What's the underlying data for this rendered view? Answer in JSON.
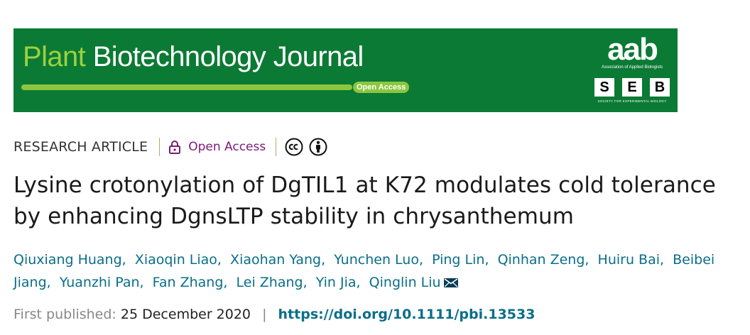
{
  "banner": {
    "title_part1": "Plant",
    "title_part2": "Biotechnology Journal",
    "open_access_badge": "Open Access",
    "color": "#0b7a34",
    "aab_logo": "aab",
    "aab_caption": "Association of Applied Biologists",
    "seb_letters": [
      "S",
      "E",
      "B"
    ],
    "seb_caption": "SOCIETY FOR EXPERIMENTAL BIOLOGY"
  },
  "meta": {
    "article_type": "RESEARCH ARTICLE",
    "lock_icon": "lock-icon",
    "open_access": "Open Access",
    "cc_icon": "creative-commons-icon",
    "by_icon": "attribution-icon"
  },
  "article": {
    "title": "Lysine crotonylation of DgTIL1 at K72 modulates cold tolerance by enhancing DgnsLTP stability in chrysanthemum"
  },
  "authors": [
    "Qiuxiang Huang",
    "Xiaoqin Liao",
    "Xiaohan Yang",
    "Yunchen Luo",
    "Ping Lin",
    "Qinhan Zeng",
    "Huiru Bai",
    "Beibei Jiang",
    "Yuanzhi Pan",
    "Fan Zhang",
    "Lei Zhang",
    "Yin Jia",
    "Qinglin Liu"
  ],
  "publication": {
    "first_published_label": "First published:",
    "date": "25 December 2020",
    "separator": "|",
    "doi": "https://doi.org/10.1111/pbi.13533"
  }
}
